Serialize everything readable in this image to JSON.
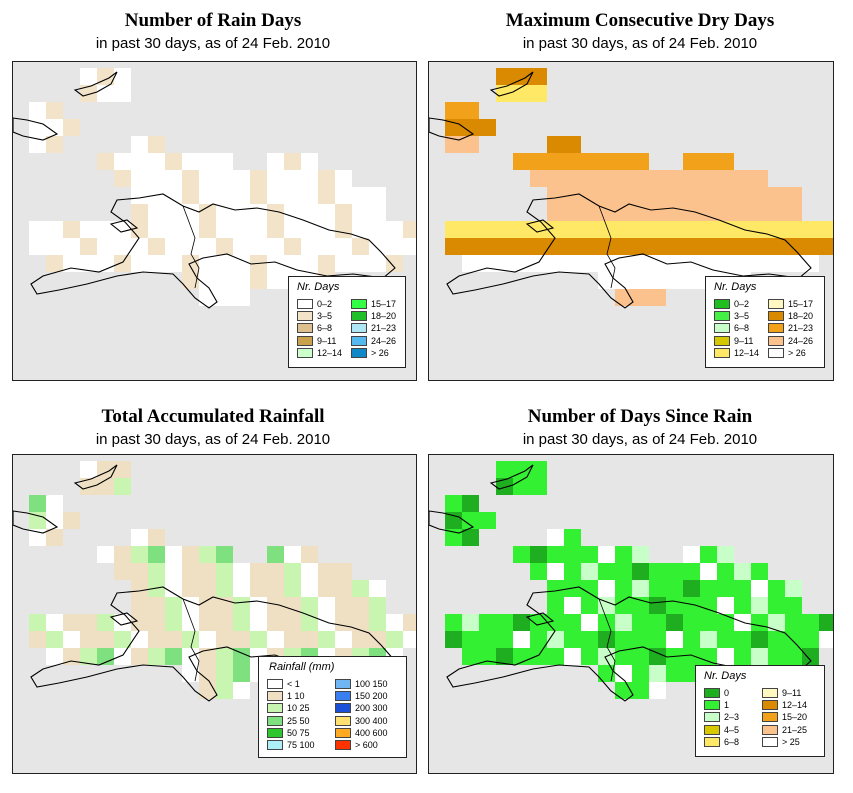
{
  "panels": [
    {
      "title": "Number of Rain Days",
      "subtitle": "in past 30 days, as of  24 Feb. 2010",
      "legend_title": "Nr. Days",
      "legend": [
        {
          "label": "0–2",
          "color": "#ffffff"
        },
        {
          "label": "3–5",
          "color": "#f2e3c9"
        },
        {
          "label": "6–8",
          "color": "#ddc08d"
        },
        {
          "label": "9–11",
          "color": "#c9a24b"
        },
        {
          "label": "12–14",
          "color": "#ccffcc"
        },
        {
          "label": "15–17",
          "color": "#33ff44"
        },
        {
          "label": "18–20",
          "color": "#1fbf2a"
        },
        {
          "label": "21–23",
          "color": "#aee8f7"
        },
        {
          "label": "24–26",
          "color": "#55b8ee"
        },
        {
          "label": "> 26",
          "color": "#1088c8"
        }
      ]
    },
    {
      "title": "Maximum Consecutive Dry Days",
      "subtitle": "in past 30 days, as of  24 Feb. 2010",
      "legend_title": "Nr. Days",
      "legend": [
        {
          "label": "0–2",
          "color": "#1fbf1f"
        },
        {
          "label": "3–5",
          "color": "#44f044"
        },
        {
          "label": "6–8",
          "color": "#c8ffc8"
        },
        {
          "label": "9–11",
          "color": "#d6c800"
        },
        {
          "label": "12–14",
          "color": "#ffe866"
        },
        {
          "label": "15–17",
          "color": "#fff8c0"
        },
        {
          "label": "18–20",
          "color": "#d98a00"
        },
        {
          "label": "21–23",
          "color": "#f2a21a"
        },
        {
          "label": "24–26",
          "color": "#fcc28e"
        },
        {
          "label": "> 26",
          "color": "#ffffff"
        }
      ]
    },
    {
      "title": "Total Accumulated Rainfall",
      "subtitle": "in past 30 days, as of  24 Feb. 2010",
      "legend_title": "Rainfall (mm)",
      "legend": [
        {
          "label": "< 1",
          "color": "#ffffff"
        },
        {
          "label": "1     10",
          "color": "#efe0c4"
        },
        {
          "label": "10     25",
          "color": "#c8f5b0"
        },
        {
          "label": "25     50",
          "color": "#7fe07f"
        },
        {
          "label": "50     75",
          "color": "#2ec82e"
        },
        {
          "label": "75   100",
          "color": "#aeeef7"
        },
        {
          "label": "100   150",
          "color": "#6fb6f2"
        },
        {
          "label": "150   200",
          "color": "#3a7ff0"
        },
        {
          "label": "200   300",
          "color": "#1c4fd8"
        },
        {
          "label": "300   400",
          "color": "#ffe070"
        },
        {
          "label": "400   600",
          "color": "#ffaa22"
        },
        {
          "label": "> 600",
          "color": "#ff3300"
        }
      ]
    },
    {
      "title": "Number of Days Since Rain",
      "subtitle": "in past 30 days, as of  24 Feb. 2010",
      "legend_title": "Nr. Days",
      "legend": [
        {
          "label": "0",
          "color": "#1fae1f"
        },
        {
          "label": "1",
          "color": "#33f033"
        },
        {
          "label": "2–3",
          "color": "#c8ffc8"
        },
        {
          "label": "4–5",
          "color": "#d8c800"
        },
        {
          "label": "6–8",
          "color": "#ffe866"
        },
        {
          "label": "9–11",
          "color": "#fff8c0"
        },
        {
          "label": "12–14",
          "color": "#d98a00"
        },
        {
          "label": "15–20",
          "color": "#f2a21a"
        },
        {
          "label": "21–25",
          "color": "#fcc28e"
        },
        {
          "label": "> 25",
          "color": "#ffffff"
        }
      ]
    }
  ]
}
